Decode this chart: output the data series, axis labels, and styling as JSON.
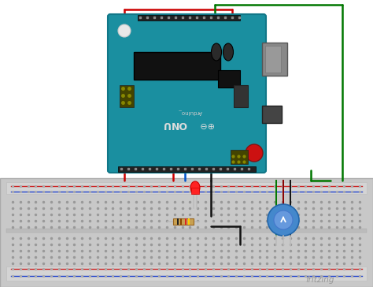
{
  "bg_color": "#ffffff",
  "fig_width": 4.74,
  "fig_height": 3.64,
  "dpi": 100,
  "fritzing_text": "fritzing",
  "fritzing_color": "#999999",
  "wire_red": "#cc0000",
  "wire_green": "#007700",
  "wire_blue": "#0055cc",
  "wire_black": "#111111",
  "arduino_color": "#1a8fa0",
  "arduino_dark": "#117788",
  "bb_body": "#cccccc",
  "bb_rail": "#d8d8d8",
  "bb_hole": "#999999",
  "bb_red_line": "#cc2222",
  "bb_blue_line": "#2244cc",
  "led_red": "#ff2222",
  "led_red_dark": "#cc0000",
  "pot_blue": "#4488cc",
  "pot_blue2": "#6699dd",
  "resistor_body": "#c8a050",
  "resistor_edge": "#996622",
  "pin_dark": "#222222",
  "chip_dark": "#111111",
  "usb_gray": "#888888",
  "crystal_dark": "#333333",
  "reset_red": "#cc1111",
  "isp_header": "#444400"
}
